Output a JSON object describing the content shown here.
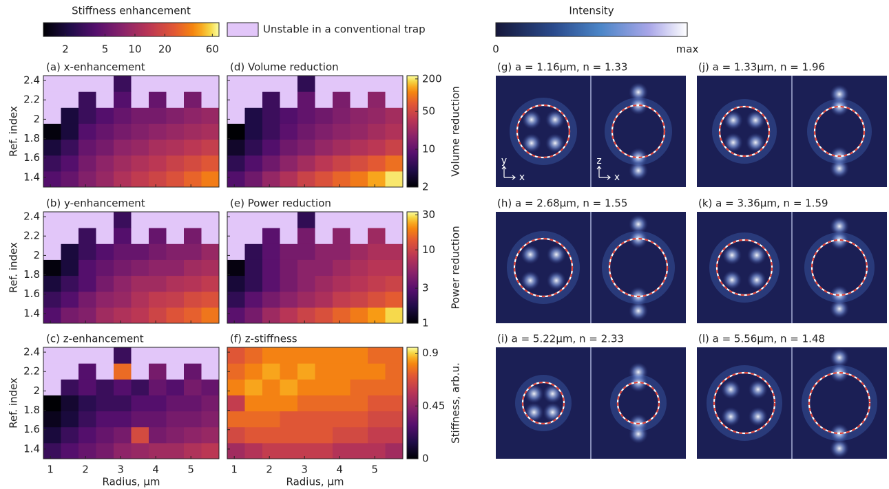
{
  "chart_data": [
    {
      "type": "colorbar",
      "title": "Stiffness enhancement",
      "colormap": "inferno",
      "scale": "log",
      "clim": [
        1.2,
        70
      ],
      "cticks": [
        2,
        5,
        10,
        20,
        60
      ],
      "null_color": "#e2c6f9",
      "null_label": "Unstable in a conventional trap"
    },
    {
      "type": "heatmap",
      "title": "(a) x-enhancement",
      "ylabel": "Ref. index",
      "xlim": [
        0.8,
        5.8
      ],
      "ylim": [
        1.3,
        2.45
      ],
      "xticks": [
        1,
        2,
        3,
        4,
        5
      ],
      "yticks": [
        1.4,
        1.6,
        1.8,
        2,
        2.2,
        2.4
      ],
      "z": [
        [
          4,
          5,
          7,
          9,
          12,
          15,
          18,
          22,
          28,
          35
        ],
        [
          3,
          4,
          6,
          8,
          10,
          12,
          14,
          17,
          20,
          24
        ],
        [
          2,
          3,
          5,
          6,
          8,
          9,
          11,
          12,
          14,
          16
        ],
        [
          1.3,
          2,
          4,
          5,
          6,
          7,
          8,
          9,
          10,
          11
        ],
        [
          null,
          2,
          3,
          4,
          5,
          6,
          6,
          7,
          8,
          9
        ],
        [
          null,
          null,
          3,
          null,
          4,
          null,
          5,
          null,
          6,
          null
        ],
        [
          null,
          null,
          null,
          null,
          3,
          null,
          null,
          null,
          null,
          null
        ]
      ]
    },
    {
      "type": "heatmap",
      "title": "(b) y-enhancement",
      "ylabel": "Ref. index",
      "xlim": [
        0.8,
        5.8
      ],
      "ylim": [
        1.3,
        2.45
      ],
      "xticks": [
        1,
        2,
        3,
        4,
        5
      ],
      "yticks": [
        1.4,
        1.6,
        1.8,
        2,
        2.2,
        2.4
      ],
      "z": [
        [
          4,
          6,
          7,
          10,
          12,
          14,
          18,
          23,
          27,
          33
        ],
        [
          3,
          4,
          6,
          8,
          9,
          12,
          15,
          16,
          20,
          22
        ],
        [
          2,
          3,
          4,
          6,
          8,
          10,
          10,
          12,
          13,
          15
        ],
        [
          1.3,
          2,
          4,
          5,
          6,
          7,
          8,
          8,
          10,
          11
        ],
        [
          null,
          2,
          3,
          4,
          5,
          5,
          6,
          7,
          7,
          9
        ],
        [
          null,
          null,
          3,
          null,
          4,
          null,
          5,
          null,
          6,
          null
        ],
        [
          null,
          null,
          null,
          null,
          3,
          null,
          null,
          null,
          null,
          null
        ]
      ]
    },
    {
      "type": "heatmap",
      "title": "(c) z-enhancement",
      "ylabel": "Ref. index",
      "xlabel": "Radius, μm",
      "xlim": [
        0.8,
        5.8
      ],
      "ylim": [
        1.3,
        2.45
      ],
      "xticks": [
        1,
        2,
        3,
        4,
        5
      ],
      "yticks": [
        1.4,
        1.6,
        1.8,
        2,
        2.2,
        2.4
      ],
      "z": [
        [
          3,
          4,
          5,
          6,
          8,
          9,
          10,
          10,
          12,
          14
        ],
        [
          2,
          3,
          4,
          5,
          6,
          20,
          6,
          7,
          8,
          9
        ],
        [
          1.5,
          2,
          3,
          4,
          4,
          5,
          5,
          6,
          6,
          7
        ],
        [
          1.2,
          1.8,
          2.5,
          3,
          3,
          4,
          4,
          5,
          5,
          6
        ],
        [
          null,
          3,
          4,
          3,
          4,
          3,
          5,
          4,
          6,
          5
        ],
        [
          null,
          null,
          4,
          null,
          30,
          null,
          6,
          null,
          5,
          null
        ],
        [
          null,
          null,
          null,
          null,
          3,
          null,
          null,
          null,
          null,
          null
        ]
      ]
    },
    {
      "type": "heatmap",
      "title": "(d) Volume reduction",
      "clabel": "Volume reduction",
      "colormap": "inferno",
      "scale": "log",
      "clim": [
        2,
        230
      ],
      "cticks": [
        2,
        10,
        50,
        200
      ],
      "xlim": [
        0.8,
        5.8
      ],
      "ylim": [
        1.3,
        2.45
      ],
      "xticks": [
        1,
        2,
        3,
        4,
        5
      ],
      "yticks": [
        1.4,
        1.6,
        1.8,
        2,
        2.2,
        2.4
      ],
      "z": [
        [
          8,
          12,
          20,
          30,
          45,
          60,
          80,
          100,
          140,
          200
        ],
        [
          5,
          8,
          12,
          18,
          25,
          35,
          45,
          55,
          70,
          90
        ],
        [
          3,
          5,
          8,
          12,
          15,
          20,
          25,
          30,
          35,
          45
        ],
        [
          2,
          4,
          6,
          9,
          12,
          15,
          18,
          20,
          25,
          30
        ],
        [
          null,
          4,
          6,
          8,
          10,
          12,
          15,
          18,
          20,
          25
        ],
        [
          null,
          null,
          6,
          null,
          10,
          null,
          14,
          null,
          18,
          null
        ],
        [
          null,
          null,
          null,
          null,
          5,
          null,
          null,
          null,
          null,
          null
        ]
      ]
    },
    {
      "type": "heatmap",
      "title": "(e) Power reduction",
      "clabel": "Power reduction",
      "colormap": "inferno",
      "scale": "log",
      "clim": [
        1,
        33
      ],
      "cticks": [
        1,
        3,
        10,
        30
      ],
      "xlim": [
        0.8,
        5.8
      ],
      "ylim": [
        1.3,
        2.45
      ],
      "xticks": [
        1,
        2,
        3,
        4,
        5
      ],
      "yticks": [
        1.4,
        1.6,
        1.8,
        2,
        2.2,
        2.4
      ],
      "z": [
        [
          3,
          4,
          6,
          8,
          10,
          12,
          15,
          18,
          22,
          28
        ],
        [
          2,
          3,
          4,
          5,
          6,
          7,
          9,
          10,
          12,
          14
        ],
        [
          1.5,
          2,
          3,
          4,
          5,
          6,
          7,
          8,
          9,
          10
        ],
        [
          1.1,
          2,
          3,
          4,
          5,
          5,
          6,
          7,
          8,
          8
        ],
        [
          null,
          2,
          3,
          4,
          4,
          5,
          5,
          6,
          7,
          7
        ],
        [
          null,
          null,
          3,
          null,
          4,
          null,
          5,
          null,
          6,
          null
        ],
        [
          null,
          null,
          null,
          null,
          2,
          null,
          null,
          null,
          null,
          null
        ]
      ]
    },
    {
      "type": "heatmap",
      "title": "(f) z-stiffness",
      "clabel": "Stiffness, arb.u.",
      "xlabel": "Radius, μm",
      "colormap": "inferno",
      "scale": "linear",
      "clim": [
        0,
        0.95
      ],
      "cticks": [
        0,
        0.45,
        0.9
      ],
      "xlim": [
        0.8,
        5.8
      ],
      "ylim": [
        1.3,
        2.45
      ],
      "xticks": [
        1,
        2,
        3,
        4,
        5
      ],
      "yticks": [
        1.4,
        1.6,
        1.8,
        2,
        2.2,
        2.4
      ],
      "z": [
        [
          0.5,
          0.55,
          0.6,
          0.6,
          0.6,
          0.6,
          0.55,
          0.55,
          0.55,
          0.5
        ],
        [
          0.65,
          0.7,
          0.7,
          0.7,
          0.7,
          0.7,
          0.65,
          0.65,
          0.6,
          0.6
        ],
        [
          0.75,
          0.75,
          0.75,
          0.7,
          0.7,
          0.7,
          0.7,
          0.7,
          0.65,
          0.65
        ],
        [
          0.6,
          0.8,
          0.8,
          0.8,
          0.75,
          0.75,
          0.75,
          0.75,
          0.7,
          0.7
        ],
        [
          0.8,
          0.85,
          0.8,
          0.85,
          0.8,
          0.8,
          0.8,
          0.75,
          0.75,
          0.75
        ],
        [
          0.75,
          0.8,
          0.85,
          0.8,
          0.85,
          0.8,
          0.8,
          0.8,
          0.8,
          0.75
        ],
        [
          0.7,
          0.75,
          0.8,
          0.8,
          0.8,
          0.8,
          0.8,
          0.8,
          0.75,
          0.75
        ]
      ]
    },
    {
      "type": "colorbar",
      "title": "Intensity",
      "colormap": "ice",
      "scale": "linear",
      "clim": [
        0,
        1
      ],
      "cticks": [
        0,
        {
          "value": 1,
          "label": "max"
        }
      ]
    },
    {
      "type": "image",
      "title": "(g) a = 1.16μm, n = 1.33",
      "axis_labels": [
        "y",
        "x",
        "z",
        "x"
      ]
    },
    {
      "type": "image",
      "title": "(h) a = 2.68μm, n = 1.55"
    },
    {
      "type": "image",
      "title": "(i) a = 5.22μm, n = 2.33"
    },
    {
      "type": "image",
      "title": "(j) a = 1.33μm, n = 1.96"
    },
    {
      "type": "image",
      "title": "(k) a = 3.36μm, n = 1.59"
    },
    {
      "type": "image",
      "title": "(l) a = 5.56μm, n = 1.48"
    }
  ]
}
